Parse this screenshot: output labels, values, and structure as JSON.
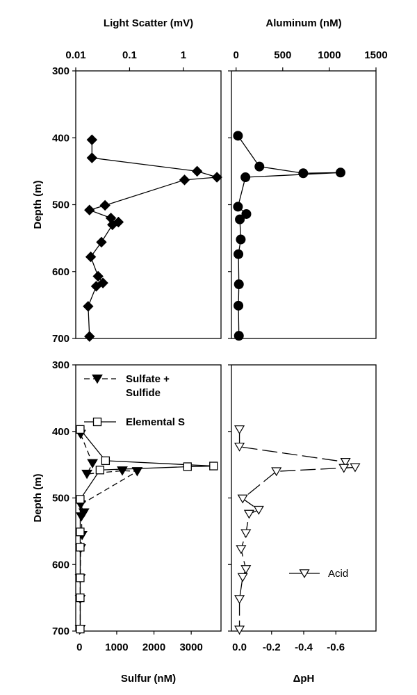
{
  "chart_data": [
    {
      "type": "scatter",
      "panel": "top-left",
      "title": "Light Scatter (mV)",
      "xscale": "log",
      "xlim": [
        0.01,
        5
      ],
      "xticks": [
        0.01,
        0.1,
        1
      ],
      "xtick_labels": [
        "0.01",
        "0.1",
        "1"
      ],
      "ylabel": "Depth (m)",
      "ylim": [
        300,
        700
      ],
      "yticks": [
        300,
        400,
        500,
        600,
        700
      ],
      "ytick_labels": [
        "300",
        "400",
        "500",
        "600",
        "700"
      ],
      "inverted_y": true,
      "series": [
        {
          "marker": "filled-diamond",
          "connected": true,
          "points": [
            {
              "x": 0.02,
              "y": 403
            },
            {
              "x": 0.02,
              "y": 430
            },
            {
              "x": 1.8,
              "y": 450
            },
            {
              "x": 4.2,
              "y": 459
            },
            {
              "x": 1.05,
              "y": 463
            },
            {
              "x": 0.035,
              "y": 501
            },
            {
              "x": 0.018,
              "y": 508
            },
            {
              "x": 0.045,
              "y": 520
            },
            {
              "x": 0.062,
              "y": 526
            },
            {
              "x": 0.048,
              "y": 530
            },
            {
              "x": 0.03,
              "y": 556
            },
            {
              "x": 0.019,
              "y": 578
            },
            {
              "x": 0.026,
              "y": 607
            },
            {
              "x": 0.032,
              "y": 617
            },
            {
              "x": 0.024,
              "y": 622
            },
            {
              "x": 0.017,
              "y": 652
            },
            {
              "x": 0.018,
              "y": 697
            }
          ]
        }
      ]
    },
    {
      "type": "scatter",
      "panel": "top-right",
      "title": "Aluminum (nM)",
      "xlim": [
        -50,
        1500
      ],
      "xticks": [
        0,
        500,
        1000,
        1500
      ],
      "xtick_labels": [
        "0",
        "500",
        "1000",
        "1500"
      ],
      "ylim": [
        300,
        700
      ],
      "inverted_y": true,
      "series": [
        {
          "marker": "filled-circle",
          "connected": true,
          "points": [
            {
              "x": 20,
              "y": 397
            },
            {
              "x": 250,
              "y": 443
            },
            {
              "x": 720,
              "y": 453
            },
            {
              "x": 1120,
              "y": 452
            },
            {
              "x": 100,
              "y": 459
            },
            {
              "x": 20,
              "y": 503
            },
            {
              "x": 110,
              "y": 514
            },
            {
              "x": 40,
              "y": 522
            },
            {
              "x": 50,
              "y": 552
            },
            {
              "x": 25,
              "y": 574
            },
            {
              "x": 30,
              "y": 619
            },
            {
              "x": 25,
              "y": 651
            },
            {
              "x": 30,
              "y": 696
            }
          ]
        }
      ]
    },
    {
      "type": "scatter",
      "panel": "bottom-left",
      "xlabel": "Sulfur (nM)",
      "ylabel": "Depth (m)",
      "xlim": [
        -100,
        3800
      ],
      "xticks": [
        0,
        1000,
        2000,
        3000
      ],
      "xtick_labels": [
        "0",
        "1000",
        "2000",
        "3000"
      ],
      "ylim": [
        300,
        700
      ],
      "yticks": [
        300,
        400,
        500,
        600,
        700
      ],
      "ytick_labels": [
        "300",
        "400",
        "500",
        "600",
        "700"
      ],
      "inverted_y": true,
      "legend": "top-left",
      "series": [
        {
          "name": "Sulfate + Sulfide",
          "legend_lines": [
            "Sulfate +",
            "Sulfide"
          ],
          "marker": "filled-triangle-down",
          "line": "dashed",
          "points": [
            {
              "x": 30,
              "y": 404
            },
            {
              "x": 350,
              "y": 448
            },
            {
              "x": 200,
              "y": 464
            },
            {
              "x": 1150,
              "y": 459
            },
            {
              "x": 1550,
              "y": 460
            },
            {
              "x": 30,
              "y": 510
            },
            {
              "x": 120,
              "y": 522
            },
            {
              "x": 50,
              "y": 528
            },
            {
              "x": 70,
              "y": 556
            },
            {
              "x": 30,
              "y": 576
            },
            {
              "x": 20,
              "y": 621
            },
            {
              "x": 20,
              "y": 652
            },
            {
              "x": 20,
              "y": 697
            }
          ]
        },
        {
          "name": "Elemental S",
          "marker": "open-square",
          "line": "solid",
          "points": [
            {
              "x": 20,
              "y": 397
            },
            {
              "x": 700,
              "y": 444
            },
            {
              "x": 3600,
              "y": 452
            },
            {
              "x": 2900,
              "y": 453
            },
            {
              "x": 550,
              "y": 458
            },
            {
              "x": 20,
              "y": 502
            },
            {
              "x": 20,
              "y": 551
            },
            {
              "x": 20,
              "y": 574
            },
            {
              "x": 20,
              "y": 620
            },
            {
              "x": 20,
              "y": 650
            },
            {
              "x": 20,
              "y": 697
            }
          ]
        }
      ]
    },
    {
      "type": "scatter",
      "panel": "bottom-right",
      "xlabel": "ΔpH",
      "xlim": [
        0.05,
        -0.85
      ],
      "xticks": [
        0.0,
        -0.2,
        -0.4,
        -0.6
      ],
      "xtick_labels": [
        "0.0",
        "-0.2",
        "-0.4",
        "-0.6"
      ],
      "ylim": [
        300,
        700
      ],
      "inverted_y": true,
      "legend": "bottom-right",
      "series": [
        {
          "name": "Acid",
          "marker": "open-triangle-down",
          "line": "long-dashed",
          "points": [
            {
              "x": 0.0,
              "y": 397
            },
            {
              "x": 0.0,
              "y": 423
            },
            {
              "x": -0.66,
              "y": 446
            },
            {
              "x": -0.65,
              "y": 455
            },
            {
              "x": -0.72,
              "y": 454
            },
            {
              "x": -0.23,
              "y": 460
            },
            {
              "x": -0.02,
              "y": 501
            },
            {
              "x": -0.12,
              "y": 518
            },
            {
              "x": -0.06,
              "y": 524
            },
            {
              "x": -0.04,
              "y": 553
            },
            {
              "x": -0.01,
              "y": 577
            },
            {
              "x": -0.04,
              "y": 607
            },
            {
              "x": -0.02,
              "y": 619
            },
            {
              "x": 0.0,
              "y": 652
            },
            {
              "x": 0.0,
              "y": 698
            }
          ]
        }
      ]
    }
  ]
}
